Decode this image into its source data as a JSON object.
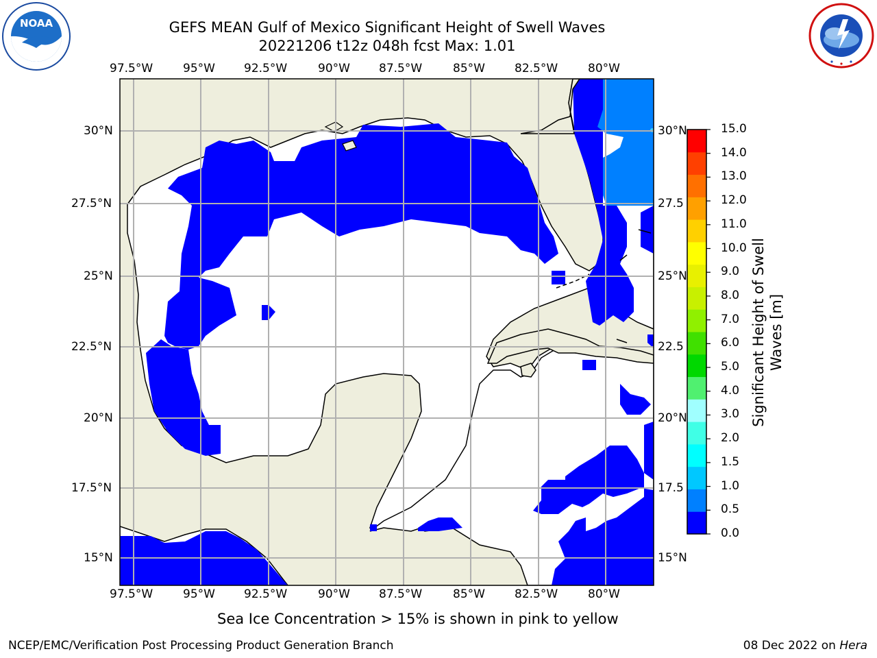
{
  "title": {
    "line1": "GEFS MEAN Gulf of Mexico Significant Height of Swell Waves",
    "line2": "20221206 t12z 048h fcst   Max: 1.01"
  },
  "logos": {
    "left": {
      "name": "noaa-logo",
      "text": "NOAA",
      "ring_text": "NATIONAL OCEANIC AND ATMOSPHERIC ADMINISTRATION · U.S. DEPARTMENT OF COMMERCE"
    },
    "right": {
      "name": "nws-logo",
      "ring_text": "NATIONAL WEATHER SERVICE"
    }
  },
  "map": {
    "lon_labels": [
      "97.5°W",
      "95°W",
      "92.5°W",
      "90°W",
      "87.5°W",
      "85°W",
      "82.5°W",
      "80°W"
    ],
    "lat_labels_left": [
      "30°N",
      "27.5°N",
      "25°N",
      "22.5°N",
      "20°N",
      "17.5°N",
      "15°N"
    ],
    "lat_labels_right": [
      "30°N",
      "27.5",
      "25°N",
      "22.5",
      "20°N",
      "17.5",
      "15°N"
    ],
    "colors": {
      "land": "#eeeedd",
      "ocean": "#ffffff",
      "swell_0": "#0000ff",
      "swell_05": "#0080ff",
      "grid": "#b0b0b0"
    }
  },
  "colorbar": {
    "label_line1": "Significant Height of Swell",
    "label_line2": "Waves [m]",
    "ticks": [
      "0.0",
      "0.5",
      "1.0",
      "1.5",
      "2.0",
      "3.0",
      "4.0",
      "5.0",
      "6.0",
      "7.0",
      "8.0",
      "9.0",
      "10.0",
      "11.0",
      "12.0",
      "13.0",
      "14.0",
      "15.0"
    ],
    "colors": [
      "#0000ff",
      "#0080ff",
      "#00c8ff",
      "#00ffff",
      "#40ffe6",
      "#a0ffff",
      "#50f070",
      "#00d800",
      "#40e000",
      "#90f000",
      "#c8f000",
      "#e8f000",
      "#ffff00",
      "#ffd000",
      "#ffa000",
      "#ff7000",
      "#ff4000",
      "#ff0000"
    ]
  },
  "note": "Sea Ice Concentration > 15% is shown in pink to yellow",
  "footer": {
    "left": "NCEP/EMC/Verification Post Processing Product Generation Branch",
    "date": "08 Dec 2022 on ",
    "host": "Hera"
  }
}
